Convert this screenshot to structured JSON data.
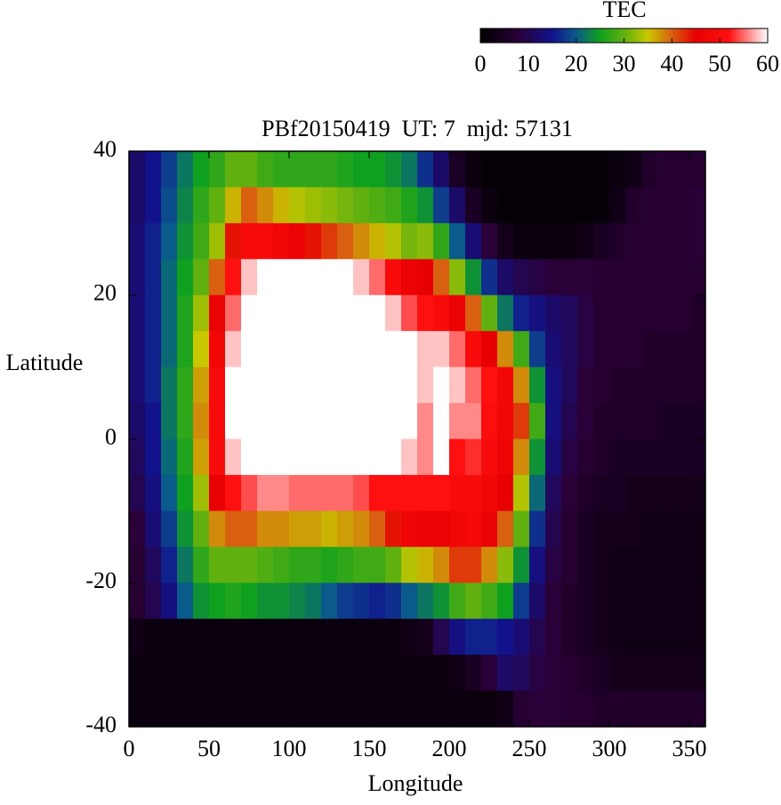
{
  "chart_data": {
    "type": "heatmap",
    "title": "PBf20150419  UT: 7  mjd: 57131",
    "x_label": "Longitude",
    "y_label": "Latitude",
    "colorbar_label": "TEC",
    "x": [
      5,
      15,
      25,
      35,
      45,
      55,
      65,
      75,
      85,
      95,
      105,
      115,
      125,
      135,
      145,
      155,
      165,
      175,
      185,
      195,
      205,
      215,
      225,
      235,
      245,
      255,
      265,
      275,
      285,
      295,
      305,
      315,
      325,
      335,
      345,
      355
    ],
    "y": [
      37.5,
      32.5,
      27.5,
      22.5,
      17.5,
      12.5,
      7.5,
      2.5,
      -2.5,
      -7.5,
      -12.5,
      -17.5,
      -22.5,
      -27.5,
      -32.5,
      -37.5
    ],
    "values": [
      [
        12,
        15,
        18,
        22,
        25,
        27,
        30,
        30,
        28,
        27,
        27,
        27,
        27,
        26,
        25,
        25,
        24,
        22,
        17,
        12,
        5,
        2,
        1,
        1,
        1,
        1,
        1,
        1,
        1,
        1,
        2,
        3,
        6,
        7,
        7,
        7
      ],
      [
        12,
        15,
        19,
        23,
        27,
        30,
        36,
        40,
        38,
        36,
        34,
        33,
        32,
        31,
        30,
        29,
        28,
        26,
        24,
        18,
        12,
        5,
        2,
        1,
        1,
        1,
        1,
        1,
        1,
        1,
        3,
        6,
        7,
        7,
        7,
        8
      ],
      [
        13,
        16,
        20,
        24,
        28,
        33,
        44,
        50,
        50,
        48,
        46,
        44,
        42,
        40,
        38,
        36,
        34,
        31,
        32,
        27,
        20,
        13,
        8,
        4,
        2,
        2,
        2,
        2,
        3,
        5,
        6,
        7,
        7,
        7,
        7,
        8
      ],
      [
        13,
        16,
        21,
        25,
        30,
        40,
        52,
        58,
        60,
        60,
        60,
        60,
        60,
        60,
        58,
        55,
        50,
        46,
        45,
        40,
        32,
        24,
        17,
        12,
        10,
        9,
        8,
        8,
        8,
        7,
        7,
        7,
        7,
        7,
        7,
        7
      ],
      [
        13,
        16,
        21,
        26,
        33,
        46,
        55,
        60,
        60,
        60,
        60,
        60,
        60,
        60,
        60,
        60,
        58,
        54,
        52,
        50,
        46,
        40,
        30,
        22,
        16,
        14,
        12,
        11,
        9,
        7,
        7,
        7,
        7,
        7,
        7,
        6
      ],
      [
        13,
        16,
        21,
        26,
        35,
        48,
        58,
        60,
        60,
        60,
        60,
        60,
        60,
        60,
        60,
        60,
        60,
        60,
        58,
        58,
        55,
        50,
        45,
        38,
        28,
        18,
        13,
        11,
        9,
        7,
        7,
        7,
        6,
        6,
        6,
        6
      ],
      [
        13,
        16,
        22,
        27,
        37,
        50,
        60,
        60,
        60,
        60,
        60,
        60,
        60,
        60,
        60,
        60,
        60,
        60,
        58,
        60,
        58,
        55,
        52,
        48,
        38,
        24,
        14,
        11,
        8,
        7,
        6,
        6,
        6,
        6,
        6,
        6
      ],
      [
        12,
        15,
        22,
        27,
        38,
        50,
        60,
        60,
        60,
        60,
        60,
        60,
        60,
        60,
        60,
        60,
        60,
        60,
        56,
        60,
        56,
        56,
        51,
        48,
        42,
        28,
        14,
        10,
        8,
        6,
        6,
        6,
        6,
        5,
        5,
        5
      ],
      [
        11,
        15,
        21,
        26,
        37,
        50,
        58,
        60,
        60,
        60,
        60,
        60,
        60,
        60,
        60,
        60,
        60,
        58,
        56,
        60,
        52,
        53,
        50,
        47,
        38,
        24,
        13,
        9,
        7,
        6,
        5,
        5,
        5,
        5,
        5,
        5
      ],
      [
        10,
        14,
        20,
        25,
        33,
        45,
        52,
        54,
        56,
        56,
        55,
        55,
        55,
        55,
        54,
        52,
        52,
        52,
        52,
        52,
        50,
        50,
        48,
        45,
        34,
        21,
        11,
        8,
        6,
        5,
        5,
        4,
        4,
        4,
        4,
        4
      ],
      [
        8,
        13,
        18,
        24,
        30,
        38,
        40,
        40,
        38,
        38,
        37,
        37,
        36,
        37,
        38,
        40,
        44,
        47,
        46,
        46,
        48,
        49,
        46,
        40,
        30,
        17,
        10,
        7,
        5,
        4,
        4,
        4,
        3,
        3,
        3,
        3
      ],
      [
        7,
        11,
        16,
        22,
        27,
        30,
        30,
        30,
        29,
        28,
        27,
        27,
        26,
        27,
        28,
        28,
        30,
        34,
        36,
        38,
        42,
        42,
        38,
        32,
        24,
        14,
        9,
        7,
        5,
        4,
        3,
        3,
        3,
        3,
        3,
        3
      ],
      [
        7,
        10,
        14,
        20,
        24,
        25,
        26,
        25,
        24,
        24,
        23,
        22,
        20,
        18,
        17,
        16,
        17,
        20,
        22,
        24,
        28,
        30,
        28,
        25,
        18,
        12,
        8,
        6,
        5,
        4,
        3,
        3,
        3,
        3,
        3,
        3
      ],
      [
        3,
        2,
        2,
        2,
        2,
        2,
        2,
        2,
        2,
        2,
        2,
        2,
        2,
        2,
        2,
        2,
        2,
        3,
        4,
        10,
        14,
        16,
        16,
        15,
        13,
        10,
        8,
        6,
        5,
        4,
        3,
        3,
        3,
        3,
        3,
        3
      ],
      [
        2,
        2,
        2,
        2,
        2,
        2,
        2,
        2,
        2,
        2,
        2,
        2,
        2,
        2,
        2,
        2,
        2,
        2,
        2,
        2,
        3,
        5,
        8,
        12,
        11,
        9,
        8,
        7,
        6,
        5,
        4,
        4,
        4,
        4,
        4,
        4
      ],
      [
        2,
        2,
        2,
        2,
        2,
        2,
        2,
        2,
        2,
        2,
        2,
        2,
        2,
        2,
        2,
        2,
        2,
        2,
        2,
        2,
        2,
        2,
        2,
        3,
        7,
        8,
        8,
        7,
        7,
        6,
        6,
        6,
        6,
        6,
        6,
        6
      ]
    ],
    "xlim": [
      0,
      360
    ],
    "ylim": [
      -40,
      40
    ],
    "xticks": [
      0,
      50,
      100,
      150,
      200,
      250,
      300,
      350
    ],
    "yticks": [
      -40,
      -20,
      0,
      20,
      40
    ],
    "zlim": [
      0,
      60
    ],
    "zticks": [
      0,
      10,
      20,
      30,
      40,
      50,
      60
    ],
    "colorscale": [
      [
        0,
        "#000000"
      ],
      [
        8,
        "#2a0038"
      ],
      [
        15,
        "#12128c"
      ],
      [
        20,
        "#0a5a8c"
      ],
      [
        25,
        "#10a020"
      ],
      [
        30,
        "#60b010"
      ],
      [
        35,
        "#c8c800"
      ],
      [
        40,
        "#d86010"
      ],
      [
        45,
        "#e80000"
      ],
      [
        52,
        "#ff1010"
      ],
      [
        60,
        "#ffffff"
      ]
    ]
  }
}
